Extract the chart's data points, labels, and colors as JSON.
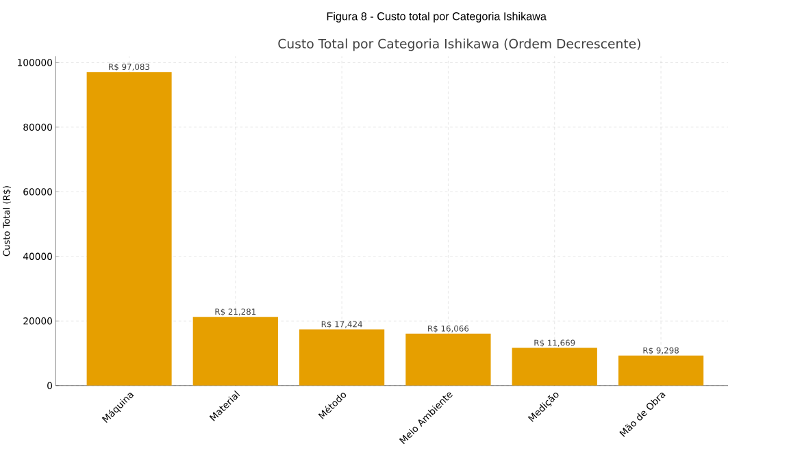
{
  "chart_data": {
    "type": "bar",
    "title": "Figura 8 - Custo total por Categoria Ishikawa",
    "subtitle": "Custo Total por Categoria Ishikawa (Ordem Decrescente)",
    "ylabel": "Custo Total (R$)",
    "categories": [
      "Máquina",
      "Material",
      "Método",
      "Meio Ambiente",
      "Medição",
      "Mão de Obra"
    ],
    "values": [
      97083,
      21281,
      17424,
      16066,
      11669,
      9298
    ],
    "value_labels": [
      "R$ 97,083",
      "R$ 21,281",
      "R$ 17,424",
      "R$ 16,066",
      "R$ 11,669",
      "R$ 9,298"
    ],
    "color": "#e69f00",
    "ylim": [
      0,
      101937
    ],
    "yticks": [
      0,
      20000,
      40000,
      60000,
      80000,
      100000
    ],
    "grid": true
  }
}
